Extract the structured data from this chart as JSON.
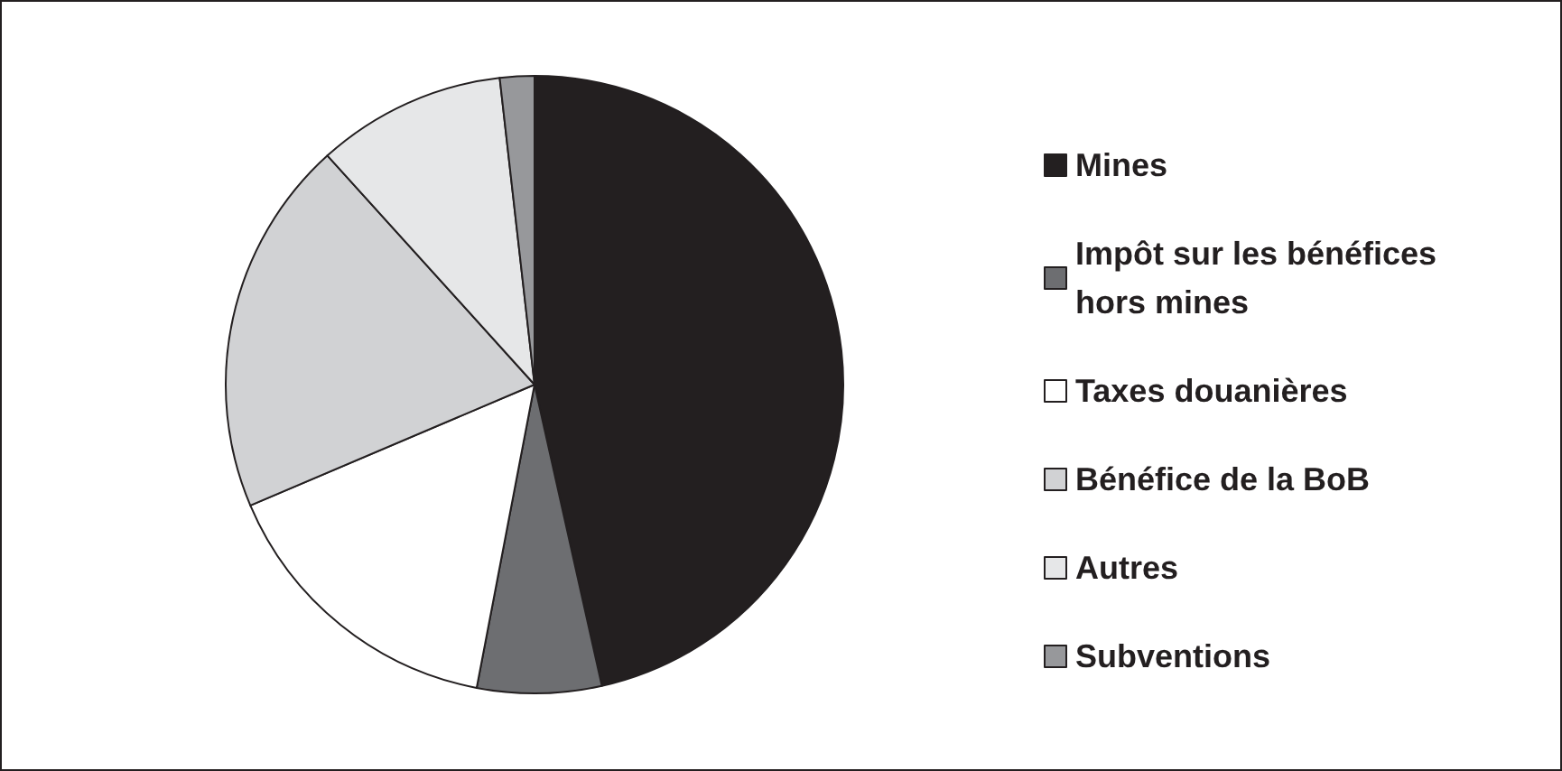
{
  "chart_data": {
    "type": "pie",
    "categories": [
      "Mines",
      "Impôt sur les bénéfices hors mines",
      "Taxes douanières",
      "Bénéfice de la BoB",
      "Autres",
      "Subventions"
    ],
    "values": [
      46.5,
      6.5,
      15.6,
      19.7,
      9.9,
      1.8
    ],
    "colors": [
      "#231f20",
      "#6d6e71",
      "#ffffff",
      "#d1d2d4",
      "#e6e7e8",
      "#97989b"
    ],
    "legend": "right"
  }
}
